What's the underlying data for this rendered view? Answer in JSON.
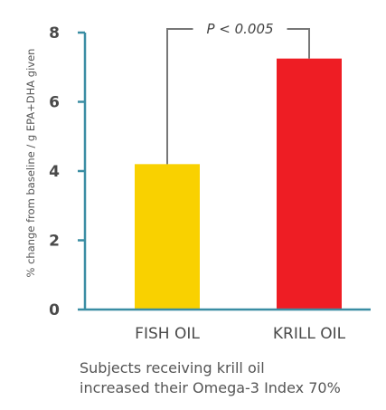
{
  "chart_data": {
    "type": "bar",
    "categories": [
      "FISH OIL",
      "KRILL OIL"
    ],
    "values": [
      4.2,
      7.25
    ],
    "ylabel": "% change from baseline / g EPA+DHA given",
    "ylim": [
      0,
      8
    ],
    "yticks": [
      0,
      2,
      4,
      6,
      8
    ],
    "colors": [
      "#f9d100",
      "#ee1d24"
    ],
    "axis_color": "#3a8da3",
    "bracket_color": "#777777",
    "annotation": "P < 0.005",
    "grid": false
  },
  "caption": {
    "line1": "Subjects receiving krill oil",
    "line2": "increased their Omega-3 Index 70%"
  }
}
